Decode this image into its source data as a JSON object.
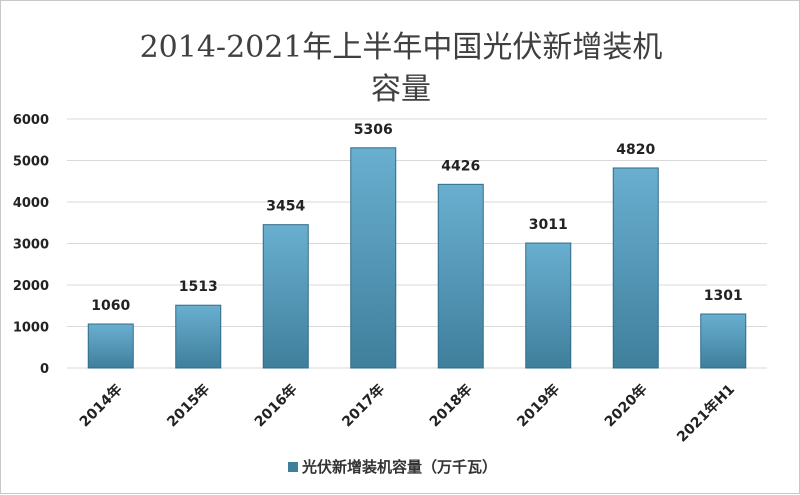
{
  "chart_data": {
    "type": "bar",
    "title_lines": [
      "2014-2021年上半年中国光伏新增装机",
      "容量"
    ],
    "categories": [
      "2014年",
      "2015年",
      "2016年",
      "2017年",
      "2018年",
      "2019年",
      "2020年",
      "2021年H1"
    ],
    "series": [
      {
        "name": "光伏新增装机容量（万千瓦）",
        "values": [
          1060,
          1513,
          3454,
          5306,
          4426,
          3011,
          4820,
          1301
        ],
        "data_labels": [
          "1060",
          "1513",
          "3454",
          "5306",
          "4426",
          "3011",
          "4820",
          "1301"
        ]
      }
    ],
    "yticks": [
      "0",
      "1000",
      "2000",
      "3000",
      "4000",
      "5000",
      "6000"
    ],
    "ylim": [
      0,
      6000
    ],
    "grid": true,
    "legend_position": "bottom",
    "colors": {
      "bar_top": "#6aafd0",
      "bar_bottom": "#3f7f9c",
      "bar_edge": "#2f6c88",
      "grid": "#d9d9d9"
    }
  }
}
